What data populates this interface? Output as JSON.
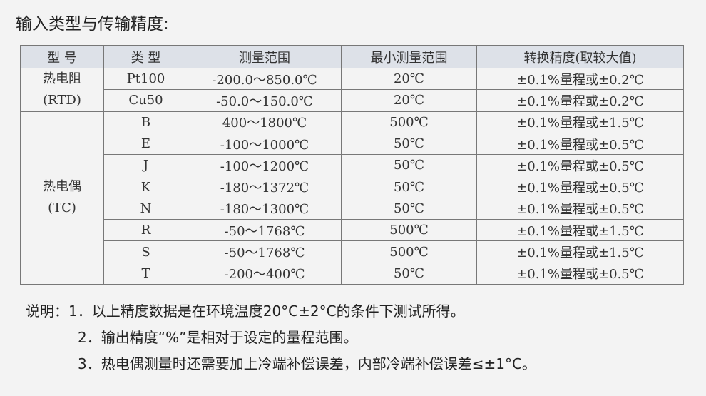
{
  "title": "输入类型与传输精度:",
  "table": {
    "headers": [
      "型 号",
      "类 型",
      "测量范围",
      "最小测量范围",
      "转换精度(取较大值)"
    ],
    "groups": [
      {
        "model": "热电阻",
        "sub": "(RTD)",
        "rows": [
          [
            "Pt100",
            "-200.0～850.0℃",
            "20℃",
            "±0.1%量程或±0.2℃"
          ],
          [
            "Cu50",
            "-50.0～150.0℃",
            "20℃",
            "±0.1%量程或±0.2℃"
          ]
        ]
      },
      {
        "model": "热电偶",
        "sub": "(TC)",
        "rows": [
          [
            "B",
            "400～1800℃",
            "500℃",
            "±0.1%量程或±1.5℃"
          ],
          [
            "E",
            "-100～1000℃",
            "50℃",
            "±0.1%量程或±0.5℃"
          ],
          [
            "J",
            "-100～1200℃",
            "50℃",
            "±0.1%量程或±0.5℃"
          ],
          [
            "K",
            "-180～1372℃",
            "50℃",
            "±0.1%量程或±0.5℃"
          ],
          [
            "N",
            "-180～1300℃",
            "50℃",
            "±0.1%量程或±0.5℃"
          ],
          [
            "R",
            "-50～1768℃",
            "500℃",
            "±0.1%量程或±1.5℃"
          ],
          [
            "S",
            "-50～1768℃",
            "500℃",
            "±0.1%量程或±1.5℃"
          ],
          [
            "T",
            "-200～400℃",
            "50℃",
            "±0.1%量程或±0.5℃"
          ]
        ]
      }
    ]
  },
  "notes": {
    "label": "说明：",
    "items": [
      "1．以上精度数据是在环境温度20°C±2°C的条件下测试所得。",
      "2．输出精度“%”是相对于设定的量程范围。",
      "3．热电偶测量时还需要加上冷端补偿误差，内部冷端补偿误差≤±1°C。"
    ]
  }
}
